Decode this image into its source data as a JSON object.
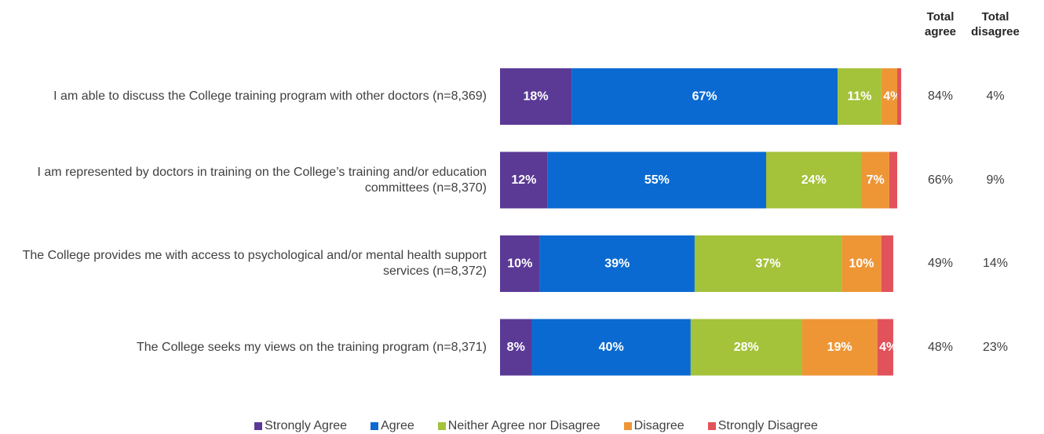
{
  "chart_data": {
    "type": "stacked-bar-horizontal",
    "categories": [
      "I am able to discuss the College training program with other doctors (n=8,369)",
      "I am represented by doctors in training on the College’s training and/or education committees (n=8,370)",
      "The College provides me with access to psychological and/or mental health support services (n=8,372)",
      "The College seeks my views on the training program (n=8,371)"
    ],
    "xlim": [
      0,
      100
    ],
    "series": [
      {
        "name": "Strongly Agree",
        "color": "#5b3a96",
        "values": [
          18,
          12,
          10,
          8
        ],
        "value_labels": [
          "18%",
          "12%",
          "10%",
          "8%"
        ]
      },
      {
        "name": "Agree",
        "color": "#0a6ad2",
        "values": [
          67,
          55,
          39,
          40
        ],
        "value_labels": [
          "67%",
          "55%",
          "39%",
          "40%"
        ]
      },
      {
        "name": "Neither Agree nor Disagree",
        "color": "#a4c23a",
        "values": [
          11,
          24,
          37,
          28
        ],
        "value_labels": [
          "11%",
          "24%",
          "37%",
          "28%"
        ]
      },
      {
        "name": "Disagree",
        "color": "#ee9636",
        "values": [
          4,
          7,
          10,
          19
        ],
        "value_labels": [
          "4%",
          "7%",
          "10%",
          "19%"
        ]
      },
      {
        "name": "Strongly Disagree",
        "color": "#e2525b",
        "values": [
          1,
          2,
          3,
          4
        ],
        "value_labels": [
          null,
          null,
          null,
          "4%"
        ]
      }
    ],
    "totals": [
      {
        "name": "Total agree",
        "values": [
          84,
          66,
          49,
          48
        ],
        "value_labels": [
          "84%",
          "66%",
          "49%",
          "48%"
        ]
      },
      {
        "name": "Total disagree",
        "values": [
          4,
          9,
          14,
          23
        ],
        "value_labels": [
          "4%",
          "9%",
          "14%",
          "23%"
        ]
      }
    ]
  }
}
